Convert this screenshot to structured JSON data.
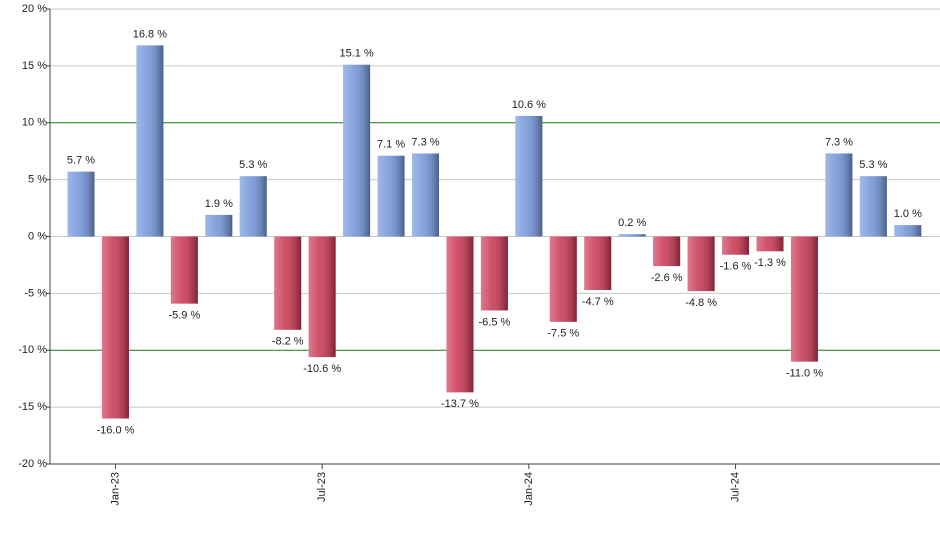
{
  "chart_data": {
    "type": "bar",
    "categories": [
      null,
      "Jan-23",
      null,
      null,
      null,
      null,
      null,
      "Jul-23",
      null,
      null,
      null,
      null,
      null,
      "Jan-24",
      null,
      null,
      null,
      null,
      null,
      "Jul-24",
      null,
      null,
      null,
      null,
      null
    ],
    "values": [
      5.7,
      -16.0,
      16.8,
      -5.9,
      1.9,
      5.3,
      -8.2,
      -10.6,
      15.1,
      7.1,
      7.3,
      -13.7,
      -6.5,
      10.6,
      -7.5,
      -4.7,
      0.2,
      -2.6,
      -4.8,
      -1.6,
      -1.3,
      -11.0,
      7.3,
      5.3,
      1.0
    ],
    "value_labels": [
      "5.7 %",
      "-16.0 %",
      "16.8 %",
      "-5.9 %",
      "1.9 %",
      "5.3 %",
      "-8.2 %",
      "-10.6 %",
      "15.1 %",
      "7.1 %",
      "7.3 %",
      "-13.7 %",
      "-6.5 %",
      "10.6 %",
      "-7.5 %",
      "-4.7 %",
      "0.2 %",
      "-2.6 %",
      "-4.8 %",
      "-1.6 %",
      "-1.3 %",
      "-11.0 %",
      "7.3 %",
      "5.3 %",
      "1.0 %"
    ],
    "positive_color": "#6f93d8",
    "negative_color": "#c8324f",
    "ylim": [
      -20,
      20
    ],
    "yticks": [
      {
        "value": -20,
        "label": "-20 %"
      },
      {
        "value": -15,
        "label": "-15 %"
      },
      {
        "value": -10,
        "label": "-10 %"
      },
      {
        "value": -5,
        "label": "-5 %"
      },
      {
        "value": 0,
        "label": "0 %"
      },
      {
        "value": 5,
        "label": "5 %"
      },
      {
        "value": 10,
        "label": "10 %"
      },
      {
        "value": 15,
        "label": "15 %"
      },
      {
        "value": 20,
        "label": "20 %"
      }
    ],
    "grid": true,
    "reference_lines": [
      -10,
      10
    ],
    "reference_color": "#1a7a1a"
  }
}
